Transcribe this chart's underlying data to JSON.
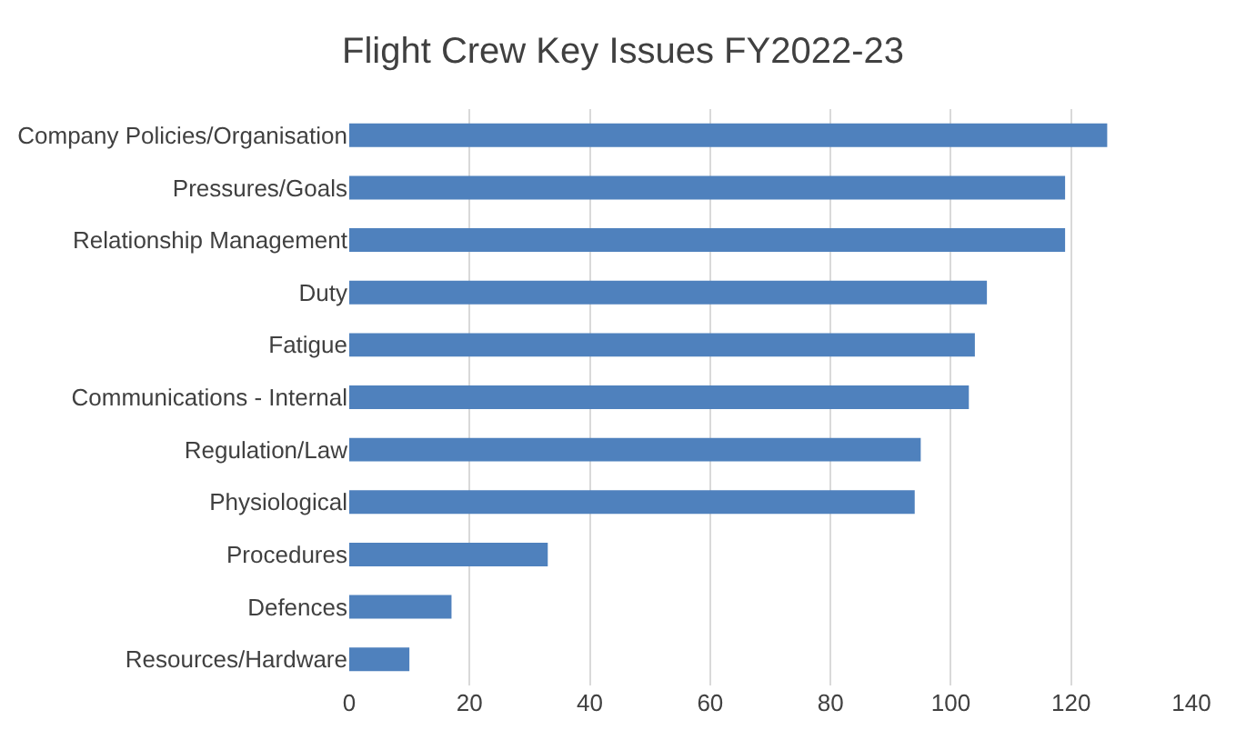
{
  "chart_data": {
    "type": "bar",
    "orientation": "horizontal",
    "title": "Flight Crew Key Issues FY2022-23",
    "categories": [
      "Company Policies/Organisation",
      "Pressures/Goals",
      "Relationship Management",
      "Duty",
      "Fatigue",
      "Communications - Internal",
      "Regulation/Law",
      "Physiological",
      "Procedures",
      "Defences",
      "Resources/Hardware"
    ],
    "values": [
      126,
      119,
      119,
      106,
      104,
      103,
      95,
      94,
      33,
      17,
      10
    ],
    "color": "#4f81bd",
    "xlim": [
      0,
      140
    ],
    "xticks": [
      0,
      20,
      40,
      60,
      80,
      100,
      120,
      140
    ],
    "grid": "x"
  }
}
